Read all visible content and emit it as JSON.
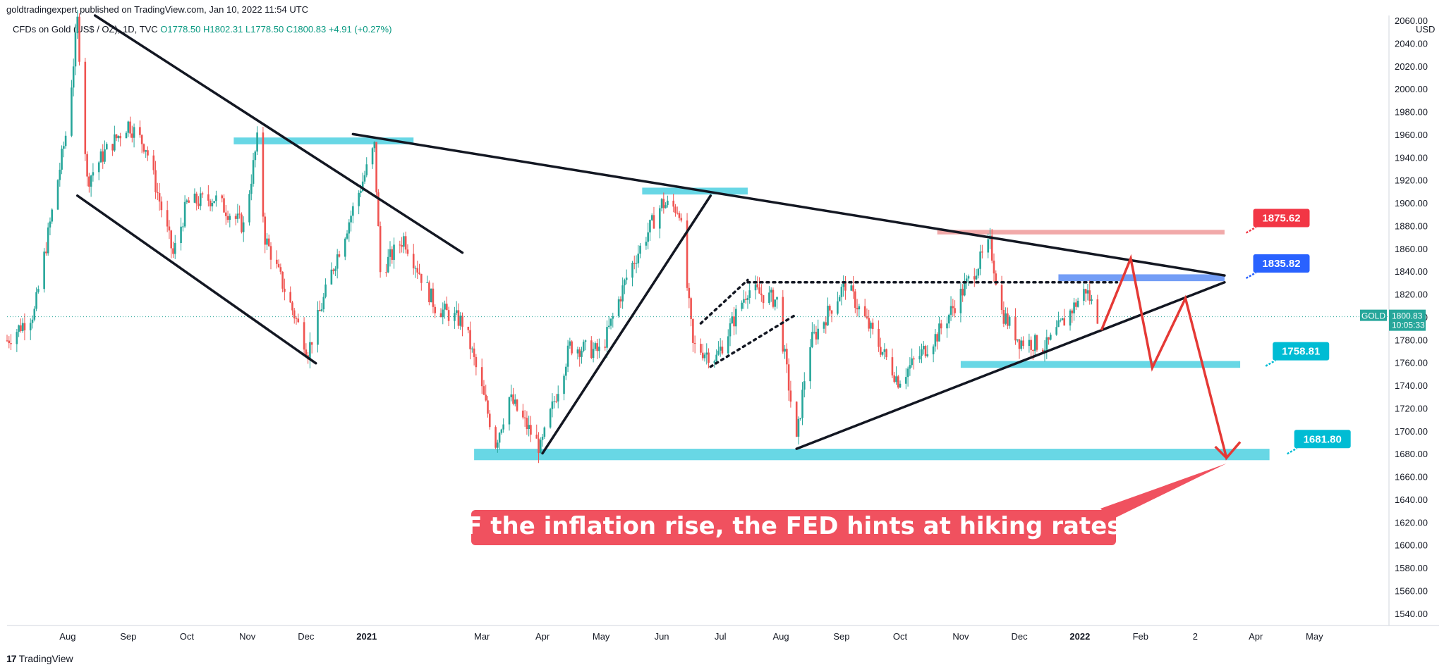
{
  "header": {
    "published_text": "goldtradingexpert published on TradingView.com, Jan 10, 2022 11:54 UTC",
    "symbol_desc": "CFDs on Gold (US$ / OZ), 1D, TVC",
    "ohlc": "O1778.50  H1802.31  L1778.50  C1800.83  +4.91 (+0.27%)"
  },
  "footer": {
    "brand": "TradingView",
    "logo": "tradingview-logo"
  },
  "colors": {
    "up": "#26a69a",
    "down": "#ef5350",
    "zone_cyan": "#4dd0e1",
    "zone_blue": "#5b8cf5",
    "zone_red": "#ef9a9a",
    "arrow": "#e53935",
    "label_red": "#f23645",
    "label_blue": "#2962ff",
    "label_cyan": "#00bcd4",
    "callout": "#f0515f",
    "price_tag": "#26a69a"
  },
  "chart_data": {
    "type": "candlestick",
    "symbol": "GOLD",
    "currency": "USD",
    "ylim": [
      1530,
      2065
    ],
    "y_ticks": [
      1540,
      1560,
      1580,
      1600,
      1620,
      1640,
      1660,
      1680,
      1700,
      1720,
      1740,
      1760,
      1780,
      1800,
      1820,
      1840,
      1860,
      1880,
      1900,
      1920,
      1940,
      1960,
      1980,
      2000,
      2020,
      2040,
      2060
    ],
    "y_tick_labels": [
      "1540.00",
      "1560.00",
      "1580.00",
      "1600.00",
      "1620.00",
      "1640.00",
      "1660.00",
      "1680.00",
      "1700.00",
      "1720.00",
      "1740.00",
      "1760.00",
      "1780.00",
      "1800.00",
      "1820.00",
      "1840.00",
      "1860.00",
      "1880.00",
      "1900.00",
      "1920.00",
      "1940.00",
      "1960.00",
      "1980.00",
      "2000.00",
      "2020.00",
      "2040.00",
      "2060.00"
    ],
    "x_ticks": [
      {
        "label": "Aug",
        "date": "2020-08-01"
      },
      {
        "label": "Sep",
        "date": "2020-09-01"
      },
      {
        "label": "Oct",
        "date": "2020-10-01"
      },
      {
        "label": "Nov",
        "date": "2020-11-01"
      },
      {
        "label": "Dec",
        "date": "2020-12-01"
      },
      {
        "label": "2021",
        "date": "2021-01-01"
      },
      {
        "label": "Mar",
        "date": "2021-03-01"
      },
      {
        "label": "Apr",
        "date": "2021-04-01"
      },
      {
        "label": "May",
        "date": "2021-05-01"
      },
      {
        "label": "Jun",
        "date": "2021-06-01"
      },
      {
        "label": "Jul",
        "date": "2021-07-01"
      },
      {
        "label": "Aug",
        "date": "2021-08-01"
      },
      {
        "label": "Sep",
        "date": "2021-09-01"
      },
      {
        "label": "Oct",
        "date": "2021-10-01"
      },
      {
        "label": "Nov",
        "date": "2021-11-01"
      },
      {
        "label": "Dec",
        "date": "2021-12-01"
      },
      {
        "label": "2022",
        "date": "2022-01-01"
      },
      {
        "label": "Feb",
        "date": "2022-02-01"
      },
      {
        "label": "2",
        "date": "2022-03-01"
      },
      {
        "label": "Apr",
        "date": "2022-04-01"
      },
      {
        "label": "May",
        "date": "2022-05-01"
      }
    ],
    "last_price": {
      "value": 1800.83,
      "label": "1800.83",
      "countdown": "10:05:33"
    },
    "series": [
      {
        "name": "GOLD",
        "path": [
          [
            "2020-07-01",
            1780
          ],
          [
            "2020-07-15",
            1805
          ],
          [
            "2020-08-01",
            1970
          ],
          [
            "2020-08-06",
            2060
          ],
          [
            "2020-08-11",
            1920
          ],
          [
            "2020-08-20",
            1945
          ],
          [
            "2020-09-01",
            1970
          ],
          [
            "2020-09-10",
            1950
          ],
          [
            "2020-09-24",
            1855
          ],
          [
            "2020-10-01",
            1900
          ],
          [
            "2020-10-15",
            1905
          ],
          [
            "2020-10-30",
            1880
          ],
          [
            "2020-11-06",
            1955
          ],
          [
            "2020-11-10",
            1870
          ],
          [
            "2020-11-30",
            1780
          ],
          [
            "2020-12-02",
            1770
          ],
          [
            "2020-12-15",
            1845
          ],
          [
            "2021-01-05",
            1950
          ],
          [
            "2021-01-08",
            1840
          ],
          [
            "2021-01-20",
            1870
          ],
          [
            "2021-02-05",
            1810
          ],
          [
            "2021-02-20",
            1795
          ],
          [
            "2021-03-08",
            1690
          ],
          [
            "2021-03-15",
            1730
          ],
          [
            "2021-03-31",
            1685
          ],
          [
            "2021-04-15",
            1775
          ],
          [
            "2021-05-01",
            1770
          ],
          [
            "2021-05-15",
            1840
          ],
          [
            "2021-06-01",
            1900
          ],
          [
            "2021-06-10",
            1895
          ],
          [
            "2021-06-17",
            1775
          ],
          [
            "2021-06-29",
            1765
          ],
          [
            "2021-07-15",
            1825
          ],
          [
            "2021-07-30",
            1815
          ],
          [
            "2021-08-09",
            1690
          ],
          [
            "2021-08-15",
            1775
          ],
          [
            "2021-09-03",
            1830
          ],
          [
            "2021-09-30",
            1745
          ],
          [
            "2021-10-20",
            1785
          ],
          [
            "2021-11-16",
            1865
          ],
          [
            "2021-11-22",
            1805
          ],
          [
            "2021-12-01",
            1780
          ],
          [
            "2021-12-15",
            1775
          ],
          [
            "2022-01-04",
            1825
          ],
          [
            "2022-01-10",
            1800.83
          ]
        ]
      }
    ],
    "zones": [
      {
        "name": "resistance-zone-1",
        "from": "2020-10-25",
        "to": "2021-01-25",
        "low": 1952,
        "high": 1958,
        "color": "cyan"
      },
      {
        "name": "resistance-zone-2",
        "from": "2021-05-22",
        "to": "2021-07-15",
        "low": 1908,
        "high": 1914,
        "color": "cyan"
      },
      {
        "name": "support-zone-bottom",
        "from": "2021-02-25",
        "to": "2022-04-08",
        "low": 1675,
        "high": 1685,
        "color": "cyan"
      },
      {
        "name": "support-zone-1758",
        "from": "2021-11-01",
        "to": "2022-03-24",
        "low": 1756,
        "high": 1762,
        "color": "cyan"
      },
      {
        "name": "zone-1875",
        "from": "2021-10-20",
        "to": "2022-03-16",
        "low": 1873,
        "high": 1877,
        "color": "red"
      },
      {
        "name": "zone-1835",
        "from": "2021-12-21",
        "to": "2022-03-16",
        "low": 1832,
        "high": 1838,
        "color": "blue"
      }
    ],
    "trendlines": [
      {
        "name": "channel-upper",
        "from": [
          "2020-08-15",
          2065
        ],
        "to": [
          "2021-02-19",
          1857
        ]
      },
      {
        "name": "channel-lower",
        "from": [
          "2020-08-06",
          1907
        ],
        "to": [
          "2020-12-06",
          1760
        ]
      },
      {
        "name": "triangle-upper",
        "from": [
          "2020-12-25",
          1961
        ],
        "to": [
          "2022-03-16",
          1837
        ]
      },
      {
        "name": "triangle-lower",
        "from": [
          "2021-08-09",
          1685
        ],
        "to": [
          "2022-03-16",
          1831
        ]
      },
      {
        "name": "rally-line",
        "from": [
          "2021-04-01",
          1681
        ],
        "to": [
          "2021-06-26",
          1907
        ]
      }
    ],
    "dotted_lines": [
      {
        "name": "neckline-dotted",
        "from": [
          "2021-07-15",
          1831
        ],
        "to": [
          "2022-01-20",
          1831
        ]
      },
      {
        "name": "flag-top-dotted",
        "from": [
          "2021-06-21",
          1795
        ],
        "to": [
          "2021-07-15",
          1833
        ]
      },
      {
        "name": "flag-bottom-dotted",
        "from": [
          "2021-06-26",
          1757
        ],
        "to": [
          "2021-08-09",
          1803
        ]
      }
    ],
    "projection": [
      [
        "2022-01-12",
        1789
      ],
      [
        "2022-01-27",
        1852
      ],
      [
        "2022-02-07",
        1756
      ],
      [
        "2022-02-24",
        1817
      ],
      [
        "2022-03-17",
        1677
      ],
      [
        "2022-03-24",
        1691
      ]
    ],
    "price_labels": [
      {
        "text": "1875.62",
        "value": 1875.62,
        "date": "2022-03-22",
        "color": "red"
      },
      {
        "text": "1835.82",
        "value": 1835.82,
        "date": "2022-03-22",
        "color": "blue"
      },
      {
        "text": "1758.81",
        "value": 1758.81,
        "date": "2022-04-01",
        "color": "cyan"
      },
      {
        "text": "1681.80",
        "value": 1681.8,
        "date": "2022-04-12",
        "color": "cyan"
      }
    ],
    "annotation": {
      "text": "IF the inflation rise, the FED hints at hiking rates.",
      "points_to": [
        "2022-03-17",
        1677
      ]
    }
  }
}
